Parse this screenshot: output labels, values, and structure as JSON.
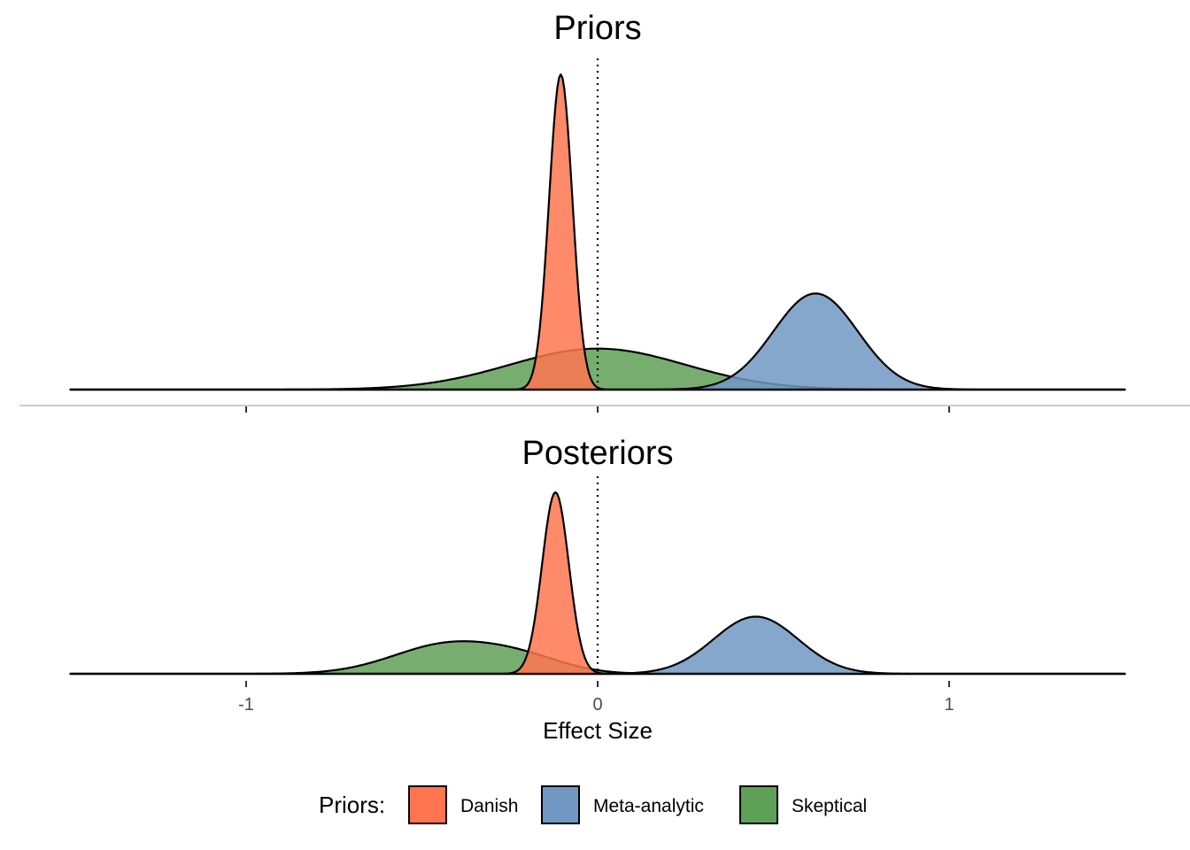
{
  "chart_data": {
    "type": "area",
    "xlabel": "Effect Size",
    "xlim": [
      -1.5,
      1.5
    ],
    "x_ticks": [
      {
        "value": -1,
        "label": "-1"
      },
      {
        "value": 0,
        "label": "0"
      },
      {
        "value": 1,
        "label": "1"
      }
    ],
    "reference_line": {
      "x": 0,
      "style": "dotted"
    },
    "colors": {
      "Danish": "#FF7550",
      "Meta-analytic": "#7098C2",
      "Skeptical": "#5FA057"
    },
    "legend": {
      "title": "Priors:",
      "position": "bottom",
      "entries": [
        "Danish",
        "Meta-analytic",
        "Skeptical"
      ]
    },
    "panels": [
      {
        "title": "Priors",
        "ylim": [
          0,
          1.0
        ],
        "series": [
          {
            "name": "Skeptical",
            "draw_order": 0,
            "components": [
              {
                "mean": 0.0,
                "sd": 0.25,
                "height": 0.13
              }
            ]
          },
          {
            "name": "Meta-analytic",
            "draw_order": 1,
            "components": [
              {
                "mean": 0.62,
                "sd": 0.12,
                "height": 0.305
              }
            ]
          },
          {
            "name": "Danish",
            "draw_order": 2,
            "components": [
              {
                "mean": -0.105,
                "sd": 0.033,
                "height": 1.0
              }
            ]
          }
        ]
      },
      {
        "title": "Posteriors",
        "ylim": [
          0,
          1.0
        ],
        "series": [
          {
            "name": "Skeptical",
            "draw_order": 0,
            "components": [
              {
                "mean": -0.42,
                "sd": 0.16,
                "height": 0.165
              },
              {
                "mean": -0.2,
                "sd": 0.12,
                "height": 0.06
              }
            ]
          },
          {
            "name": "Meta-analytic",
            "draw_order": 1,
            "components": [
              {
                "mean": 0.45,
                "sd": 0.12,
                "height": 0.315
              }
            ]
          },
          {
            "name": "Danish",
            "draw_order": 2,
            "components": [
              {
                "mean": -0.12,
                "sd": 0.038,
                "height": 1.0
              }
            ]
          }
        ]
      }
    ]
  }
}
